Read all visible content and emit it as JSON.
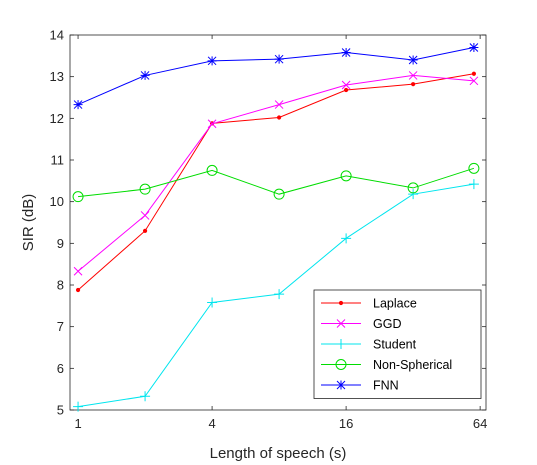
{
  "chart_data": {
    "type": "line",
    "title": "",
    "xlabel": "Length of speech (s)",
    "ylabel": "SIR (dB)",
    "x_scale": "log2",
    "x": [
      1,
      2,
      4,
      8,
      16,
      32,
      60
    ],
    "x_ticks": [
      1,
      4,
      16,
      64
    ],
    "x_tick_labels": [
      "1",
      "4",
      "16",
      "64"
    ],
    "xlim": [
      0.92,
      68
    ],
    "ylim": [
      5,
      14
    ],
    "y_ticks": [
      5,
      6,
      7,
      8,
      9,
      10,
      11,
      12,
      13,
      14
    ],
    "y_tick_labels": [
      "5",
      "6",
      "7",
      "8",
      "9",
      "10",
      "11",
      "12",
      "13",
      "14"
    ],
    "grid": false,
    "box": true,
    "legend_position": "bottom-right",
    "series": [
      {
        "name": "Laplace",
        "color": "#ff0000",
        "marker": "point",
        "values": [
          7.88,
          9.3,
          11.88,
          12.02,
          12.68,
          12.82,
          13.07
        ]
      },
      {
        "name": "GGD",
        "color": "#ff00ff",
        "marker": "x",
        "values": [
          8.33,
          9.67,
          11.87,
          12.33,
          12.8,
          13.03,
          12.9
        ]
      },
      {
        "name": "Student",
        "color": "#00e5ee",
        "marker": "plus",
        "values": [
          5.08,
          5.33,
          7.58,
          7.78,
          9.12,
          10.18,
          10.42
        ]
      },
      {
        "name": "Non-Spherical",
        "color": "#00dd00",
        "marker": "circle",
        "values": [
          10.12,
          10.3,
          10.75,
          10.18,
          10.62,
          10.33,
          10.8
        ]
      },
      {
        "name": "FNN",
        "color": "#0000ff",
        "marker": "star",
        "values": [
          12.33,
          13.03,
          13.38,
          13.42,
          13.58,
          13.4,
          13.7
        ]
      }
    ]
  }
}
